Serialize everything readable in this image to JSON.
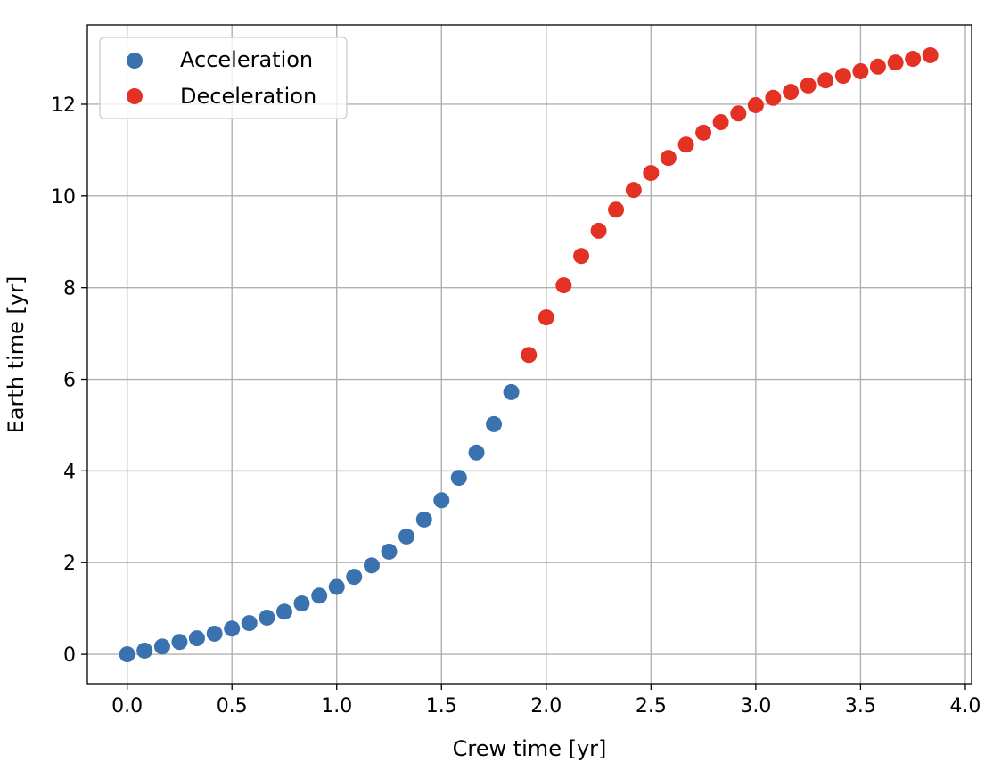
{
  "chart_data": {
    "type": "scatter",
    "title": "",
    "xlabel": "Crew time [yr]",
    "ylabel": "Earth time [yr]",
    "xlim": [
      -0.19,
      4.03
    ],
    "ylim": [
      -0.64,
      13.73
    ],
    "xticks": [
      0.0,
      0.5,
      1.0,
      1.5,
      2.0,
      2.5,
      3.0,
      3.5,
      4.0
    ],
    "xtick_labels": [
      "0.0",
      "0.5",
      "1.0",
      "1.5",
      "2.0",
      "2.5",
      "3.0",
      "3.5",
      "4.0"
    ],
    "yticks": [
      0,
      2,
      4,
      6,
      8,
      10,
      12
    ],
    "ytick_labels": [
      "0",
      "2",
      "4",
      "6",
      "8",
      "10",
      "12"
    ],
    "grid": true,
    "legend_position": "top-left",
    "series": [
      {
        "name": "Acceleration",
        "color": "#3a72b0",
        "x": [
          0,
          0.083,
          0.167,
          0.25,
          0.333,
          0.417,
          0.5,
          0.583,
          0.667,
          0.75,
          0.833,
          0.917,
          1.0,
          1.083,
          1.167,
          1.25,
          1.333,
          1.417,
          1.5,
          1.583,
          1.667,
          1.75,
          1.833
        ],
        "y": [
          0,
          0.08,
          0.17,
          0.27,
          0.35,
          0.45,
          0.56,
          0.68,
          0.8,
          0.93,
          1.11,
          1.28,
          1.47,
          1.69,
          1.94,
          2.24,
          2.57,
          2.94,
          3.36,
          3.85,
          4.4,
          5.02,
          5.72
        ]
      },
      {
        "name": "Deceleration",
        "color": "#e33224",
        "x": [
          1.917,
          2.0,
          2.083,
          2.167,
          2.25,
          2.333,
          2.417,
          2.5,
          2.583,
          2.667,
          2.75,
          2.833,
          2.917,
          3.0,
          3.083,
          3.167,
          3.25,
          3.333,
          3.417,
          3.5,
          3.583,
          3.667,
          3.75,
          3.833
        ],
        "y": [
          6.53,
          7.35,
          8.05,
          8.69,
          9.24,
          9.7,
          10.13,
          10.5,
          10.83,
          11.12,
          11.38,
          11.61,
          11.8,
          11.98,
          12.14,
          12.27,
          12.41,
          12.52,
          12.62,
          12.72,
          12.82,
          12.91,
          12.99,
          13.07
        ]
      }
    ]
  }
}
